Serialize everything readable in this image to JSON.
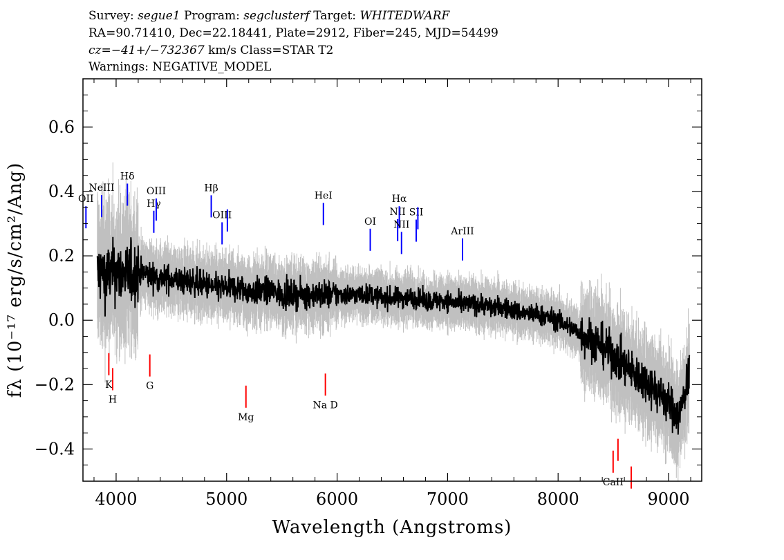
{
  "header": {
    "line1": [
      {
        "text": "Survey: ",
        "italic": false
      },
      {
        "text": "segue1",
        "italic": true
      },
      {
        "text": " Program: ",
        "italic": false
      },
      {
        "text": "segclusterf",
        "italic": true
      },
      {
        "text": " Target: ",
        "italic": false
      },
      {
        "text": "WHITEDWARF",
        "italic": true
      }
    ],
    "line2": "RA=90.71410, Dec=22.18441, Plate=2912, Fiber=245, MJD=54499",
    "line3": [
      {
        "text": "cz=−41+/−732367",
        "italic": true
      },
      {
        "text": " km/s Class=STAR T2",
        "italic": false
      }
    ],
    "line4": "Warnings: NEGATIVE_MODEL"
  },
  "chart_data": {
    "type": "line",
    "title": "",
    "xlabel": "Wavelength (Angstroms)",
    "ylabel": "fλ (10⁻¹⁷ erg/s/cm²/Ang)",
    "xlim": [
      3700,
      9300
    ],
    "ylim": [
      -0.5,
      0.75
    ],
    "x_ticks": [
      4000,
      5000,
      6000,
      7000,
      8000,
      9000
    ],
    "x_tick_labels": [
      "4000",
      "5000",
      "6000",
      "7000",
      "8000",
      "9000"
    ],
    "y_ticks": [
      -0.4,
      -0.2,
      0.0,
      0.2,
      0.4,
      0.6
    ],
    "y_tick_labels": [
      "−0.4",
      "−0.2",
      "0.0",
      "0.2",
      "0.4",
      "0.6"
    ],
    "colors": {
      "flux": "#000000",
      "noise": "#c0c0c0",
      "emission": "#0000ff",
      "absorption": "#ff0000"
    },
    "series": [
      {
        "type": "line",
        "x": [
          3830,
          3900,
          4000,
          4100,
          4200,
          4300,
          4400,
          4500,
          4600,
          4700,
          4800,
          4900,
          5000,
          5100,
          5200,
          5300,
          5400,
          5500,
          5600,
          5700,
          5800,
          5900,
          6000,
          6100,
          6200,
          6300,
          6400,
          6500,
          6600,
          6700,
          6800,
          6900,
          7000,
          7100,
          7200,
          7300,
          7400,
          7500,
          7600,
          7700,
          7800,
          7900,
          8000,
          8100,
          8200,
          8300,
          8400,
          8500,
          8600,
          8700,
          8800,
          8900,
          9000,
          9100,
          9190
        ],
        "values": [
          0.15,
          0.14,
          0.15,
          0.14,
          0.15,
          0.14,
          0.13,
          0.13,
          0.12,
          0.12,
          0.11,
          0.1,
          0.1,
          0.1,
          0.09,
          0.09,
          0.09,
          0.08,
          0.08,
          0.08,
          0.08,
          0.08,
          0.08,
          0.08,
          0.08,
          0.08,
          0.07,
          0.07,
          0.07,
          0.07,
          0.06,
          0.06,
          0.06,
          0.05,
          0.05,
          0.05,
          0.04,
          0.04,
          0.03,
          0.02,
          0.02,
          0.01,
          0.0,
          -0.02,
          -0.04,
          -0.06,
          -0.08,
          -0.11,
          -0.14,
          -0.17,
          -0.19,
          -0.22,
          -0.26,
          -0.3,
          -0.15
        ]
      }
    ],
    "lines": [
      {
        "label": "OII",
        "wave": 3727,
        "kind": "emission"
      },
      {
        "label": "NeIII",
        "wave": 3869,
        "kind": "emission"
      },
      {
        "label": "Hδ",
        "wave": 4102,
        "kind": "emission"
      },
      {
        "label": "Hγ",
        "wave": 4341,
        "kind": "emission"
      },
      {
        "label": "OIII",
        "wave": 4363,
        "kind": "emission"
      },
      {
        "label": "Hβ",
        "wave": 4861,
        "kind": "emission"
      },
      {
        "label": "OIII",
        "wave": 4959,
        "kind": "emission"
      },
      {
        "label": "",
        "wave": 5007,
        "kind": "emission"
      },
      {
        "label": "HeI",
        "wave": 5876,
        "kind": "emission"
      },
      {
        "label": "OI",
        "wave": 6300,
        "kind": "emission"
      },
      {
        "label": "NII",
        "wave": 6548,
        "kind": "emission"
      },
      {
        "label": "Hα",
        "wave": 6563,
        "kind": "emission"
      },
      {
        "label": "NII",
        "wave": 6583,
        "kind": "emission"
      },
      {
        "label": "SII",
        "wave": 6716,
        "kind": "emission"
      },
      {
        "label": "",
        "wave": 6731,
        "kind": "emission"
      },
      {
        "label": "ArIII",
        "wave": 7135,
        "kind": "emission"
      },
      {
        "label": "K",
        "wave": 3934,
        "kind": "absorption"
      },
      {
        "label": "H",
        "wave": 3969,
        "kind": "absorption"
      },
      {
        "label": "G",
        "wave": 4305,
        "kind": "absorption"
      },
      {
        "label": "Mg",
        "wave": 5175,
        "kind": "absorption"
      },
      {
        "label": "Na D",
        "wave": 5894,
        "kind": "absorption"
      },
      {
        "label": "CaII",
        "wave": 8498,
        "kind": "absorption"
      },
      {
        "label": "",
        "wave": 8542,
        "kind": "absorption"
      },
      {
        "label": "",
        "wave": 8662,
        "kind": "absorption"
      }
    ]
  }
}
